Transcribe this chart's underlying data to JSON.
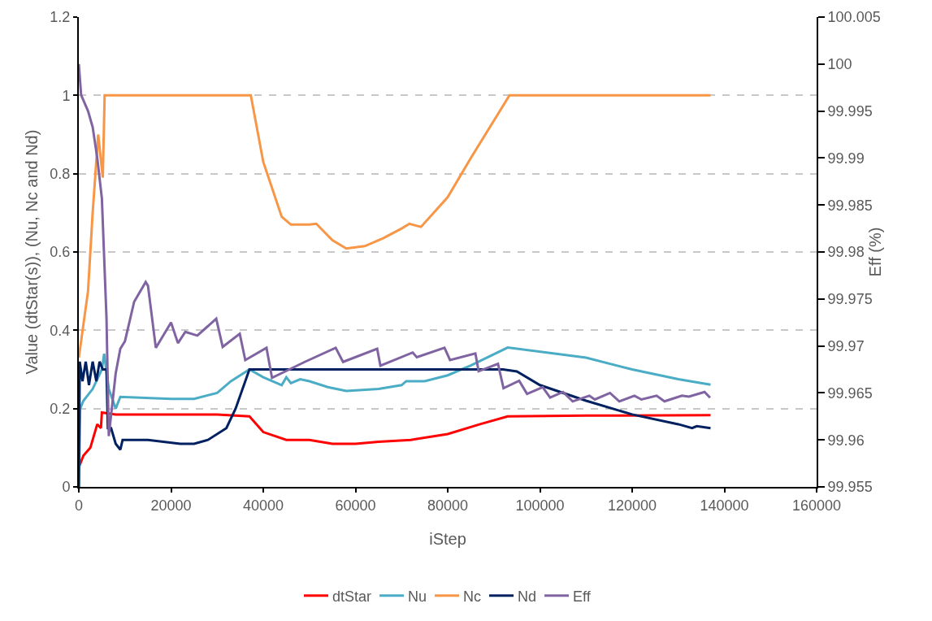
{
  "chart_data": {
    "type": "line",
    "xlabel": "iStep",
    "ylabel": "Value (dtStar(s)), (Nu, Nc and Nd)",
    "y2label": "Eff (%)",
    "xlim": [
      0,
      160000
    ],
    "xticks": [
      0,
      20000,
      40000,
      60000,
      80000,
      100000,
      120000,
      140000,
      160000
    ],
    "ylim": [
      0,
      1.2
    ],
    "yticks": [
      0,
      0.2,
      0.4,
      0.6,
      0.8,
      1,
      1.2
    ],
    "y2lim": [
      99.955,
      100.005
    ],
    "y2ticks": [
      99.955,
      99.96,
      99.965,
      99.97,
      99.975,
      99.98,
      99.985,
      99.99,
      99.995,
      100,
      100.005
    ],
    "grid": "y",
    "legend": "bottom",
    "marker": "none",
    "line_style": "solid",
    "series": [
      {
        "name": "dtStar",
        "color": "#ff0000",
        "x": [
          0,
          1000,
          2500,
          4000,
          4800,
          5000,
          8000,
          20000,
          30000,
          37000,
          40000,
          45000,
          50000,
          55000,
          60000,
          65000,
          72000,
          80000,
          87000,
          93000,
          110000,
          137000
        ],
        "values": [
          0.05,
          0.08,
          0.1,
          0.16,
          0.15,
          0.19,
          0.185,
          0.185,
          0.185,
          0.18,
          0.14,
          0.12,
          0.12,
          0.11,
          0.11,
          0.115,
          0.12,
          0.135,
          0.16,
          0.18,
          0.182,
          0.183
        ]
      },
      {
        "name": "Nu",
        "color": "#4bacc6",
        "x": [
          0,
          300,
          1000,
          3000,
          5000,
          5500,
          6500,
          8000,
          9000,
          20000,
          25000,
          30000,
          33000,
          37000,
          40000,
          44000,
          45000,
          46000,
          48000,
          50000,
          54000,
          58000,
          65000,
          70000,
          71000,
          75000,
          80000,
          85000,
          93000,
          110000,
          120000,
          130000,
          137000
        ],
        "values": [
          0,
          0.2,
          0.22,
          0.25,
          0.3,
          0.34,
          0.25,
          0.2,
          0.23,
          0.225,
          0.225,
          0.24,
          0.27,
          0.3,
          0.28,
          0.26,
          0.28,
          0.265,
          0.275,
          0.27,
          0.255,
          0.245,
          0.25,
          0.26,
          0.27,
          0.27,
          0.285,
          0.31,
          0.356,
          0.33,
          0.3,
          0.275,
          0.261
        ]
      },
      {
        "name": "Nc",
        "color": "#f79646",
        "x": [
          0,
          2000,
          3000,
          4200,
          5200,
          5600,
          37300,
          40000,
          44000,
          46000,
          50000,
          51500,
          55000,
          58000,
          62000,
          66000,
          70000,
          71700,
          74200,
          80000,
          85000,
          93400,
          137000
        ],
        "values": [
          0.33,
          0.5,
          0.7,
          0.9,
          0.79,
          1,
          1,
          0.83,
          0.69,
          0.67,
          0.67,
          0.672,
          0.63,
          0.609,
          0.615,
          0.635,
          0.66,
          0.672,
          0.664,
          0.74,
          0.84,
          1,
          1
        ]
      },
      {
        "name": "Nd",
        "color": "#002060",
        "x": [
          0,
          200,
          800,
          1500,
          2200,
          3000,
          3800,
          4500,
          5200,
          6000,
          6300,
          7000,
          8000,
          9000,
          9500,
          15000,
          22000,
          25000,
          28000,
          32000,
          34000,
          37000,
          92000,
          95000,
          100000,
          110000,
          120000,
          130000,
          133000,
          134000,
          137000
        ],
        "values": [
          0,
          0.32,
          0.27,
          0.32,
          0.26,
          0.32,
          0.27,
          0.32,
          0.3,
          0.3,
          0.15,
          0.15,
          0.11,
          0.095,
          0.12,
          0.12,
          0.11,
          0.11,
          0.12,
          0.15,
          0.2,
          0.3,
          0.3,
          0.295,
          0.26,
          0.22,
          0.185,
          0.16,
          0.15,
          0.155,
          0.15
        ]
      },
      {
        "name": "Eff",
        "color": "#8064a2",
        "axis": "y2",
        "x": [
          0,
          500,
          2000,
          3000,
          4000,
          5000,
          6000,
          6500,
          6700,
          8000,
          9000,
          10000,
          12000,
          14500,
          15000,
          16700,
          20000,
          21500,
          23100,
          25700,
          29800,
          31200,
          34900,
          36100,
          40700,
          41900,
          49000,
          55700,
          57300,
          64700,
          65400,
          72400,
          73300,
          79300,
          80500,
          86000,
          86700,
          90900,
          92100,
          95500,
          97200,
          100600,
          102200,
          105000,
          107100,
          110700,
          111900,
          115200,
          117200,
          120500,
          122000,
          125300,
          127000,
          130800,
          132300,
          135700,
          136900
        ],
        "values": [
          100,
          99.9967,
          99.995,
          99.9933,
          99.99,
          99.9857,
          99.973,
          99.9604,
          99.9613,
          99.9671,
          99.9697,
          99.9705,
          99.9747,
          99.9768,
          99.9764,
          99.9698,
          99.9725,
          99.9703,
          99.9715,
          99.9711,
          99.9729,
          99.9699,
          99.9713,
          99.9685,
          99.9698,
          99.9666,
          99.9683,
          99.9698,
          99.9683,
          99.9697,
          99.9679,
          99.9693,
          99.9688,
          99.9698,
          99.9685,
          99.9692,
          99.9673,
          99.9681,
          99.9655,
          99.9663,
          99.9649,
          99.9656,
          99.9645,
          99.9651,
          99.9641,
          99.9647,
          99.9643,
          99.965,
          99.9641,
          99.9647,
          99.9643,
          99.9647,
          99.9641,
          99.9647,
          99.9646,
          99.9651,
          99.9645
        ]
      }
    ]
  }
}
